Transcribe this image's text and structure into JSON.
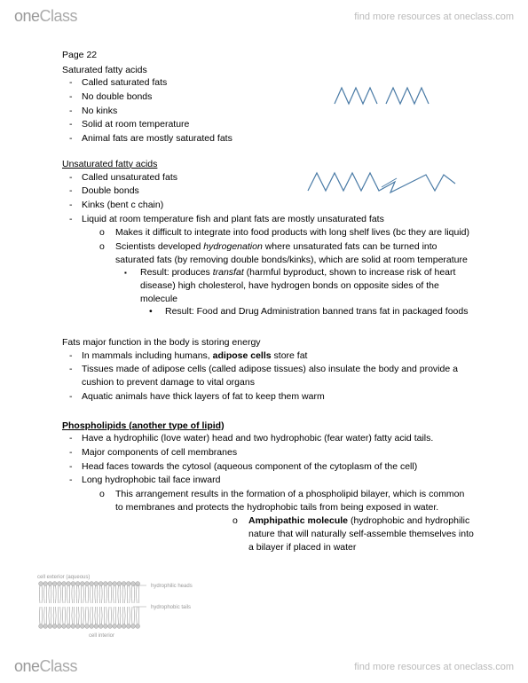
{
  "header": {
    "logo_one": "one",
    "logo_class": "Class",
    "tagline": "find more resources at oneclass.com"
  },
  "footer": {
    "logo_one": "one",
    "logo_class": "Class",
    "tagline": "find more resources at oneclass.com"
  },
  "page_label": "Page 22",
  "saturated": {
    "title": "Saturated fatty acids",
    "items": [
      "Called saturated fats",
      "No double bonds",
      "No kinks",
      "Solid at room temperature",
      "Animal fats are mostly saturated fats"
    ]
  },
  "unsaturated": {
    "title": "Unsaturated fatty acids",
    "items_pre": [
      "Called unsaturated fats",
      "Double bonds",
      "Kinks (bent c chain)",
      "Liquid at room temperature fish and plant fats are mostly unsaturated fats"
    ],
    "sub_o": [
      "Makes it difficult to integrate into food products with long shelf lives (bc they are liquid)"
    ],
    "sub_o2_pre": "Scientists developed ",
    "sub_o2_em": "hydrogenation",
    "sub_o2_post": " where unsaturated fats can be turned into saturated fats (by removing double bonds/kinks), which are solid at room temperature",
    "sq_pre": "Result: produces ",
    "sq_em": "transfat",
    "sq_post": " (harmful byproduct, shown to increase risk of heart disease) high cholesterol, have hydrogen bonds on opposite sides of the molecule",
    "bullet": "Result: Food and Drug Administration banned trans fat in packaged foods"
  },
  "bodyfn": {
    "title": "Fats major function in the body is storing energy",
    "i1_pre": "In mammals including humans, ",
    "i1_bold": "adipose cells",
    "i1_post": " store fat",
    "i2": "Tissues made of adipose cells (called adipose tissues) also insulate the body and provide a cushion to prevent damage to vital organs",
    "i3": "Aquatic animals have thick layers of fat to keep them warm"
  },
  "phospho": {
    "title": "Phospholipids (another type of lipid)",
    "items": [
      "Have a hydrophilic (love water) head and two hydrophobic (fear water) fatty acid tails.",
      "Major components of cell membranes",
      "Head faces towards the cytosol (aqueous component of the cytoplasm of the cell)",
      "Long hydrophobic tail face inward"
    ],
    "sub_o": "This arrangement results in the formation of a phospholipid bilayer, which is common to membranes and protects the hydrophobic tails from being exposed in water.",
    "amph_bold": "Amphipathic molecule",
    "amph_rest": " (hydrophobic and hydrophilic nature that will naturally self-assemble themselves into a bilayer if placed in water"
  },
  "figures": {
    "sat_zigzag": {
      "stroke": "#4a7ba6",
      "stroke_width": 1.2
    },
    "unsat_zigzag": {
      "stroke": "#4a7ba6",
      "stroke_width": 1.2
    },
    "membrane": {
      "head_fill": "#cccccc",
      "tail_stroke": "#888888",
      "label1": "cell exterior (aqueous)",
      "label2": "hydrophilic heads",
      "label3": "hydrophobic tails",
      "label4": "cell interior"
    }
  }
}
